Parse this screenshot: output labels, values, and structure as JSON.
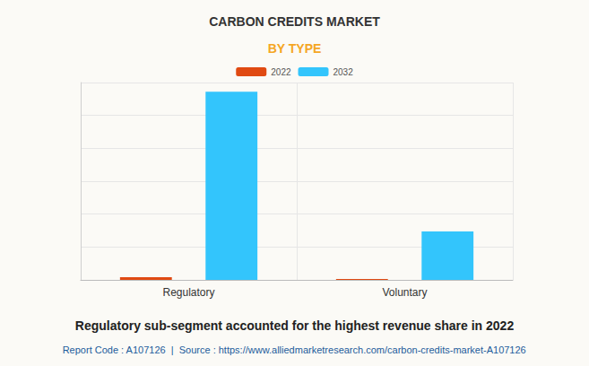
{
  "chart_data": {
    "type": "bar",
    "title": "CARBON CREDITS MARKET",
    "subtitle": "BY TYPE",
    "categories": [
      "Regulatory",
      "Voluntary"
    ],
    "series": [
      {
        "name": "2022",
        "color": "#e04a12",
        "values": [
          0.08,
          0.03
        ]
      },
      {
        "name": "2032",
        "color": "#33c5fc",
        "values": [
          5.72,
          1.47
        ]
      }
    ],
    "ylim": [
      0,
      6
    ],
    "yticks": [
      0,
      1,
      2,
      3,
      4,
      5,
      6
    ],
    "grid": true,
    "tick_labels": "x",
    "legend": "top",
    "annotations": [
      "Regulatory sub-segment accounted for the highest revenue share in 2022",
      "Report Code : A107126  |  Source : https://www.alliedmarketresearch.com/carbon-credits-market-A107126"
    ]
  }
}
